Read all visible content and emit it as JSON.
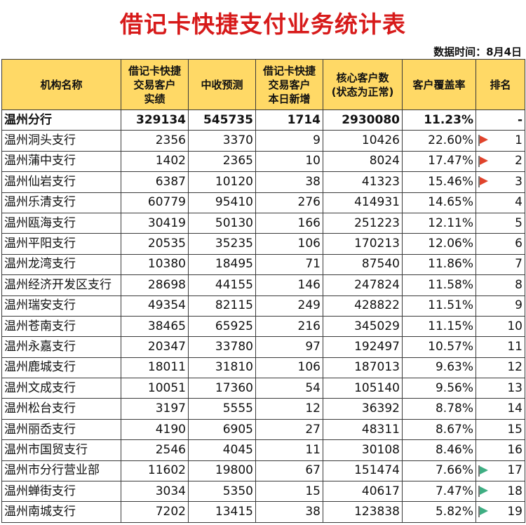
{
  "title": "借记卡快捷支付业务统计表",
  "subtitle": "数据时间：8月4日",
  "colors": {
    "title": "#d71a1a",
    "header_bg": "#ffd966",
    "flag_red": "#e0442c",
    "flag_green": "#3fae83"
  },
  "columns": [
    {
      "line1": "机构名称",
      "line2": "",
      "line3": ""
    },
    {
      "line1": "借记卡快捷",
      "line2": "交易客户",
      "line3": "实绩"
    },
    {
      "line1": "中收预测",
      "line2": "",
      "line3": ""
    },
    {
      "line1": "借记卡快捷",
      "line2": "交易客户",
      "line3": "本日新增"
    },
    {
      "line1": "核心客户数",
      "line2": "(状态为正常)",
      "line3": ""
    },
    {
      "line1": "客户覆盖率",
      "line2": "",
      "line3": ""
    },
    {
      "line1": "排名",
      "line2": "",
      "line3": ""
    }
  ],
  "summary": {
    "name": "温州分行",
    "customers": "329134",
    "forecast": "545735",
    "new_today": "1714",
    "core": "2930080",
    "coverage": "11.23%",
    "rank": "-"
  },
  "rows": [
    {
      "name": "温州洞头支行",
      "customers": "2356",
      "forecast": "3370",
      "new_today": "9",
      "core": "10426",
      "coverage": "22.60%",
      "rank": "1",
      "flag": "red-flag-icon"
    },
    {
      "name": "温州蒲中支行",
      "customers": "1402",
      "forecast": "2365",
      "new_today": "10",
      "core": "8024",
      "coverage": "17.47%",
      "rank": "2",
      "flag": "red-flag-icon"
    },
    {
      "name": "温州仙岩支行",
      "customers": "6387",
      "forecast": "10120",
      "new_today": "38",
      "core": "41323",
      "coverage": "15.46%",
      "rank": "3",
      "flag": "red-flag-icon"
    },
    {
      "name": "温州乐清支行",
      "customers": "60779",
      "forecast": "95410",
      "new_today": "276",
      "core": "414931",
      "coverage": "14.65%",
      "rank": "4",
      "flag": ""
    },
    {
      "name": "温州瓯海支行",
      "customers": "30419",
      "forecast": "50130",
      "new_today": "166",
      "core": "251223",
      "coverage": "12.11%",
      "rank": "5",
      "flag": ""
    },
    {
      "name": "温州平阳支行",
      "customers": "20535",
      "forecast": "35235",
      "new_today": "106",
      "core": "170213",
      "coverage": "12.06%",
      "rank": "6",
      "flag": ""
    },
    {
      "name": "温州龙湾支行",
      "customers": "10380",
      "forecast": "18495",
      "new_today": "71",
      "core": "87540",
      "coverage": "11.86%",
      "rank": "7",
      "flag": ""
    },
    {
      "name": "温州经济开发区支行",
      "customers": "28698",
      "forecast": "44155",
      "new_today": "146",
      "core": "247824",
      "coverage": "11.58%",
      "rank": "8",
      "flag": ""
    },
    {
      "name": "温州瑞安支行",
      "customers": "49354",
      "forecast": "82115",
      "new_today": "249",
      "core": "428822",
      "coverage": "11.51%",
      "rank": "9",
      "flag": ""
    },
    {
      "name": "温州苍南支行",
      "customers": "38465",
      "forecast": "65925",
      "new_today": "216",
      "core": "345029",
      "coverage": "11.15%",
      "rank": "10",
      "flag": ""
    },
    {
      "name": "温州永嘉支行",
      "customers": "20347",
      "forecast": "33780",
      "new_today": "97",
      "core": "192497",
      "coverage": "10.57%",
      "rank": "11",
      "flag": ""
    },
    {
      "name": "温州鹿城支行",
      "customers": "18011",
      "forecast": "31810",
      "new_today": "106",
      "core": "187013",
      "coverage": "9.63%",
      "rank": "12",
      "flag": ""
    },
    {
      "name": "温州文成支行",
      "customers": "10051",
      "forecast": "17360",
      "new_today": "54",
      "core": "105140",
      "coverage": "9.56%",
      "rank": "13",
      "flag": ""
    },
    {
      "name": "温州松台支行",
      "customers": "3197",
      "forecast": "5555",
      "new_today": "12",
      "core": "36392",
      "coverage": "8.78%",
      "rank": "14",
      "flag": ""
    },
    {
      "name": "温州丽岙支行",
      "customers": "4190",
      "forecast": "6905",
      "new_today": "27",
      "core": "48311",
      "coverage": "8.67%",
      "rank": "15",
      "flag": ""
    },
    {
      "name": "温州市国贸支行",
      "customers": "2546",
      "forecast": "4045",
      "new_today": "11",
      "core": "30108",
      "coverage": "8.46%",
      "rank": "16",
      "flag": ""
    },
    {
      "name": "温州市分行营业部",
      "customers": "11602",
      "forecast": "19800",
      "new_today": "67",
      "core": "151474",
      "coverage": "7.66%",
      "rank": "17",
      "flag": "green-flag-icon"
    },
    {
      "name": "温州蝉街支行",
      "customers": "3034",
      "forecast": "5350",
      "new_today": "15",
      "core": "40617",
      "coverage": "7.47%",
      "rank": "18",
      "flag": "green-flag-icon"
    },
    {
      "name": "温州南城支行",
      "customers": "7202",
      "forecast": "13415",
      "new_today": "38",
      "core": "123838",
      "coverage": "5.82%",
      "rank": "19",
      "flag": "green-flag-icon"
    }
  ]
}
